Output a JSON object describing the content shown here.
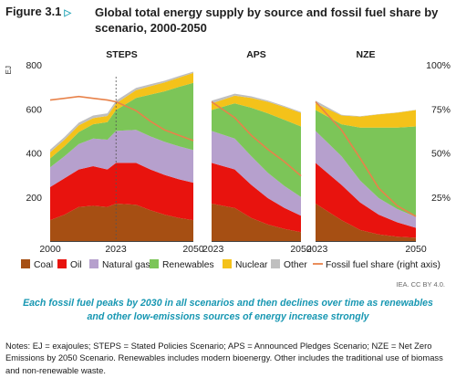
{
  "header": {
    "figure_label": "Figure 3.1",
    "title": "Global total energy supply by source and fossil fuel share by scenario, 2000-2050"
  },
  "credit": "IEA. CC BY 4.0.",
  "caption": "Each fossil fuel peaks by 2030 in all scenarios and then declines over time as renewables and other low-emissions sources of energy increase strongly",
  "notes": "Notes: EJ = exajoules; STEPS = Stated Policies Scenario; APS = Announced Pledges Scenario; NZE = Net Zero Emissions by 2050 Scenario. Renewables includes modern bioenergy. Other includes the traditional use of biomass and non-renewable waste.",
  "chart_data": {
    "type": "area",
    "ylabel": "EJ",
    "ylim": [
      0,
      800
    ],
    "yticks": [
      200,
      400,
      600,
      800
    ],
    "y2lim": [
      0,
      1
    ],
    "y2ticks": [
      0.25,
      0.5,
      0.75,
      1.0
    ],
    "y2ticklabels": [
      "25%",
      "50%",
      "75%",
      "100%"
    ],
    "legend_position": "bottom",
    "colors": {
      "Coal": "#a64f13",
      "Oil": "#e8130e",
      "Natural gas": "#b6a0cd",
      "Renewables": "#7cc558",
      "Nuclear": "#f4c21a",
      "Other": "#bfbfbf",
      "Fossil fuel share (right axis)": "#e8824a"
    },
    "stack_order": [
      "Coal",
      "Oil",
      "Natural gas",
      "Renewables",
      "Nuclear",
      "Other"
    ],
    "legend": [
      "Coal",
      "Oil",
      "Natural gas",
      "Renewables",
      "Nuclear",
      "Other",
      "Fossil fuel share (right axis)"
    ],
    "panels": [
      {
        "title": "STEPS",
        "x": [
          2000,
          2005,
          2010,
          2015,
          2020,
          2023,
          2030,
          2035,
          2040,
          2045,
          2050
        ],
        "x_tick_labels": [
          "2000",
          "2023",
          "2050"
        ],
        "series": [
          {
            "name": "Coal",
            "values": [
              95,
              120,
              155,
              160,
              155,
              170,
              165,
              140,
              120,
              105,
              95
            ]
          },
          {
            "name": "Oil",
            "values": [
              150,
              165,
              170,
              180,
              170,
              185,
              190,
              185,
              180,
              175,
              170
            ]
          },
          {
            "name": "Natural gas",
            "values": [
              90,
              100,
              115,
              125,
              135,
              145,
              150,
              150,
              150,
              150,
              148
            ]
          },
          {
            "name": "Renewables",
            "values": [
              40,
              45,
              55,
              65,
              80,
              95,
              145,
              190,
              230,
              270,
              305
            ]
          },
          {
            "name": "Nuclear",
            "values": [
              28,
              30,
              30,
              28,
              28,
              30,
              35,
              38,
              40,
              42,
              45
            ]
          },
          {
            "name": "Other",
            "values": [
              12,
              12,
              12,
              12,
              12,
              12,
              10,
              9,
              8,
              7,
              6
            ]
          },
          {
            "name": "Fossil fuel share (right axis)",
            "values": [
              0.8,
              0.81,
              0.82,
              0.81,
              0.8,
              0.79,
              0.74,
              0.68,
              0.63,
              0.6,
              0.57
            ]
          }
        ]
      },
      {
        "title": "APS",
        "x": [
          2023,
          2030,
          2035,
          2040,
          2045,
          2050
        ],
        "x_tick_labels": [
          "2023",
          "2050"
        ],
        "series": [
          {
            "name": "Coal",
            "values": [
              170,
              150,
              105,
              75,
              55,
              40
            ]
          },
          {
            "name": "Oil",
            "values": [
              185,
              175,
              150,
              120,
              95,
              75
            ]
          },
          {
            "name": "Natural gas",
            "values": [
              145,
              140,
              130,
              115,
              100,
              85
            ]
          },
          {
            "name": "Renewables",
            "values": [
              95,
              160,
              220,
              270,
              300,
              320
            ]
          },
          {
            "name": "Nuclear",
            "values": [
              30,
              35,
              45,
              52,
              58,
              62
            ]
          },
          {
            "name": "Other",
            "values": [
              12,
              9,
              7,
              6,
              5,
              4
            ]
          },
          {
            "name": "Fossil fuel share (right axis)",
            "values": [
              0.79,
              0.7,
              0.6,
              0.52,
              0.45,
              0.37
            ]
          }
        ]
      },
      {
        "title": "NZE",
        "x": [
          2023,
          2030,
          2035,
          2040,
          2045,
          2050
        ],
        "x_tick_labels": [
          "2023",
          "2050"
        ],
        "series": [
          {
            "name": "Coal",
            "values": [
              170,
              95,
              50,
              30,
              20,
              15
            ]
          },
          {
            "name": "Oil",
            "values": [
              185,
              160,
              125,
              90,
              65,
              45
            ]
          },
          {
            "name": "Natural gas",
            "values": [
              145,
              130,
              100,
              75,
              60,
              50
            ]
          },
          {
            "name": "Renewables",
            "values": [
              95,
              145,
              240,
              320,
              370,
              410
            ]
          },
          {
            "name": "Nuclear",
            "values": [
              30,
              40,
              50,
              60,
              68,
              75
            ]
          },
          {
            "name": "Other",
            "values": [
              12,
              3,
              2,
              1,
              1,
              1
            ]
          },
          {
            "name": "Fossil fuel share (right axis)",
            "values": [
              0.79,
              0.63,
              0.47,
              0.3,
              0.2,
              0.14
            ]
          }
        ]
      }
    ]
  }
}
